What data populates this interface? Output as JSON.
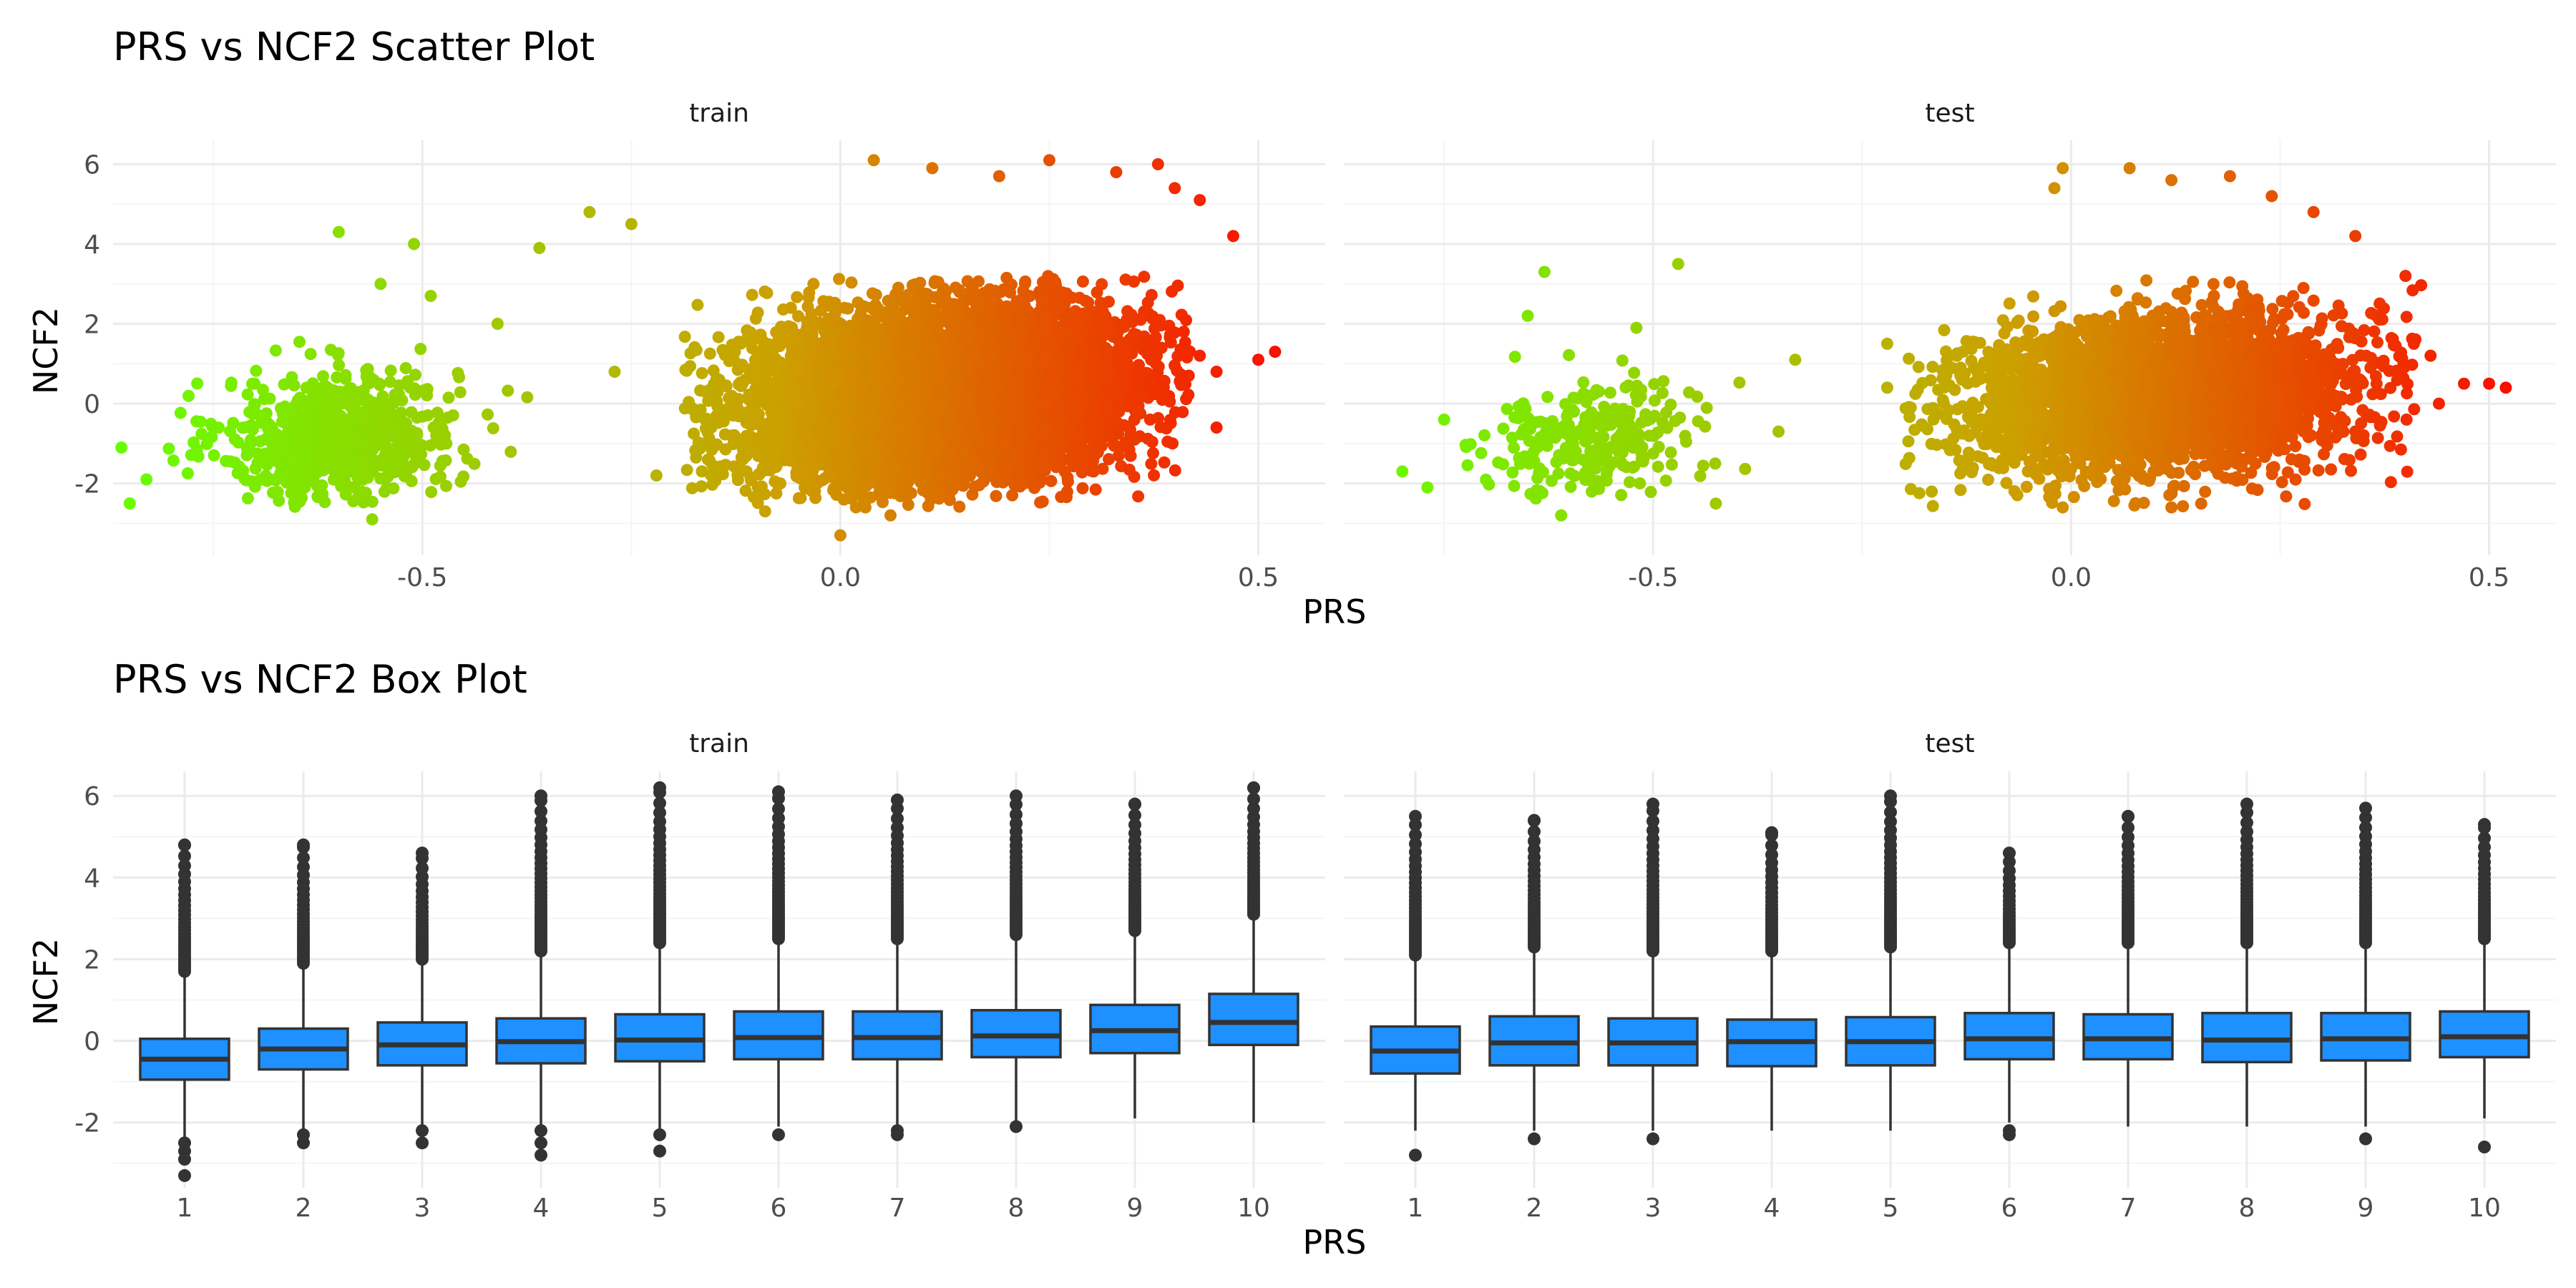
{
  "colors": {
    "background": "#ffffff",
    "grid_major": "#ebebeb",
    "grid_minor": "#f5f5f5",
    "box_fill": "#1e90ff",
    "box_line": "#333333",
    "gradient_low": "#66ff00",
    "gradient_mid": "#cca000",
    "gradient_high": "#ff0000"
  },
  "chart_data": [
    {
      "type": "scatter",
      "title": "PRS vs NCF2 Scatter Plot",
      "xlabel": "PRS",
      "ylabel": "NCF2",
      "facets": [
        "train",
        "test"
      ],
      "xlim": [
        -0.87,
        0.58
      ],
      "ylim": [
        -3.8,
        6.6
      ],
      "xticks": [
        -0.5,
        0.0,
        0.5
      ],
      "xtick_labels": [
        "-0.5",
        "0.0",
        "0.5"
      ],
      "yticks": [
        -2,
        0,
        2,
        4,
        6
      ],
      "ytick_labels": [
        "-2",
        "0",
        "2",
        "4",
        "6"
      ],
      "color_mapping": "PRS (green → orange → red)",
      "grid": true,
      "legend": "none",
      "clusters": {
        "train": [
          {
            "x_mean": -0.6,
            "x_sd": 0.07,
            "y_mean": -0.8,
            "y_sd": 0.8,
            "x_min": -0.82,
            "x_max": -0.3,
            "n": 700
          },
          {
            "x_mean": 0.12,
            "x_sd": 0.12,
            "y_mean": 0.2,
            "y_sd": 1.1,
            "x_min": -0.19,
            "x_max": 0.42,
            "n": 6000
          }
        ],
        "test": [
          {
            "x_mean": -0.58,
            "x_sd": 0.07,
            "y_mean": -0.8,
            "y_sd": 0.7,
            "x_min": -0.8,
            "x_max": -0.32,
            "n": 250
          },
          {
            "x_mean": 0.1,
            "x_sd": 0.12,
            "y_mean": 0.2,
            "y_sd": 1.0,
            "x_min": -0.2,
            "x_max": 0.42,
            "n": 3200
          }
        ]
      },
      "outliers": {
        "train": [
          [
            -0.85,
            -2.5
          ],
          [
            -0.86,
            -1.1
          ],
          [
            -0.83,
            -1.9
          ],
          [
            -0.6,
            4.3
          ],
          [
            -0.51,
            4.0
          ],
          [
            -0.55,
            3.0
          ],
          [
            -0.49,
            2.7
          ],
          [
            -0.3,
            4.8
          ],
          [
            -0.25,
            4.5
          ],
          [
            -0.36,
            3.9
          ],
          [
            -0.41,
            2.0
          ],
          [
            -0.56,
            -2.9
          ],
          [
            -0.27,
            0.8
          ],
          [
            -0.22,
            -1.8
          ],
          [
            0.04,
            6.1
          ],
          [
            0.11,
            5.9
          ],
          [
            0.19,
            5.7
          ],
          [
            0.25,
            6.1
          ],
          [
            0.33,
            5.8
          ],
          [
            0.38,
            6.0
          ],
          [
            0.4,
            5.4
          ],
          [
            0.43,
            5.1
          ],
          [
            0.47,
            4.2
          ],
          [
            0.5,
            1.1
          ],
          [
            0.52,
            1.3
          ],
          [
            0.45,
            -0.6
          ],
          [
            0.45,
            0.8
          ],
          [
            0.43,
            1.2
          ],
          [
            0.0,
            -3.3
          ],
          [
            -0.09,
            -2.7
          ],
          [
            0.03,
            -2.6
          ],
          [
            0.06,
            -2.8
          ]
        ],
        "test": [
          [
            -0.8,
            -1.7
          ],
          [
            -0.77,
            -2.1
          ],
          [
            -0.75,
            -0.4
          ],
          [
            -0.63,
            3.3
          ],
          [
            -0.65,
            2.2
          ],
          [
            -0.47,
            3.5
          ],
          [
            -0.52,
            1.9
          ],
          [
            -0.33,
            1.1
          ],
          [
            -0.61,
            -2.8
          ],
          [
            -0.35,
            -0.7
          ],
          [
            -0.22,
            1.5
          ],
          [
            -0.22,
            0.4
          ],
          [
            -0.01,
            5.9
          ],
          [
            -0.02,
            5.4
          ],
          [
            0.07,
            5.9
          ],
          [
            0.12,
            5.6
          ],
          [
            0.19,
            5.7
          ],
          [
            0.24,
            5.2
          ],
          [
            0.29,
            4.8
          ],
          [
            0.34,
            4.2
          ],
          [
            0.4,
            3.2
          ],
          [
            0.41,
            1.5
          ],
          [
            0.43,
            1.2
          ],
          [
            0.44,
            0.0
          ],
          [
            0.47,
            0.5
          ],
          [
            0.5,
            0.5
          ],
          [
            0.52,
            0.4
          ],
          [
            0.12,
            -2.6
          ],
          [
            -0.01,
            -2.6
          ]
        ]
      }
    },
    {
      "type": "box",
      "title": "PRS vs NCF2 Box Plot",
      "xlabel": "PRS",
      "ylabel": "NCF2",
      "facets": [
        "train",
        "test"
      ],
      "categories": [
        "1",
        "2",
        "3",
        "4",
        "5",
        "6",
        "7",
        "8",
        "9",
        "10"
      ],
      "ylim": [
        -3.6,
        6.6
      ],
      "yticks": [
        -2,
        0,
        2,
        4,
        6
      ],
      "ytick_labels": [
        "-2",
        "0",
        "2",
        "4",
        "6"
      ],
      "grid": true,
      "legend": "none",
      "boxes": {
        "train": [
          {
            "q1": -0.95,
            "median": -0.45,
            "q3": 0.05,
            "whisker_low": -2.4,
            "whisker_high": 1.6,
            "outliers_low": [
              -2.5,
              -2.7,
              -2.9,
              -3.3
            ],
            "outliers_high_range": [
              1.7,
              4.8
            ]
          },
          {
            "q1": -0.7,
            "median": -0.2,
            "q3": 0.3,
            "whisker_low": -2.2,
            "whisker_high": 1.8,
            "outliers_low": [
              -2.3,
              -2.5
            ],
            "outliers_high_range": [
              1.9,
              4.8
            ]
          },
          {
            "q1": -0.6,
            "median": -0.1,
            "q3": 0.45,
            "whisker_low": -2.1,
            "whisker_high": 1.9,
            "outliers_low": [
              -2.2,
              -2.5
            ],
            "outliers_high_range": [
              2.0,
              4.6
            ]
          },
          {
            "q1": -0.55,
            "median": -0.02,
            "q3": 0.55,
            "whisker_low": -2.1,
            "whisker_high": 2.1,
            "outliers_low": [
              -2.2,
              -2.5,
              -2.8
            ],
            "outliers_high_range": [
              2.2,
              6.0
            ]
          },
          {
            "q1": -0.5,
            "median": 0.02,
            "q3": 0.65,
            "whisker_low": -2.2,
            "whisker_high": 2.3,
            "outliers_low": [
              -2.3,
              -2.7
            ],
            "outliers_high_range": [
              2.4,
              6.2
            ]
          },
          {
            "q1": -0.45,
            "median": 0.08,
            "q3": 0.72,
            "whisker_low": -2.1,
            "whisker_high": 2.4,
            "outliers_low": [
              -2.3
            ],
            "outliers_high_range": [
              2.5,
              6.1
            ]
          },
          {
            "q1": -0.45,
            "median": 0.08,
            "q3": 0.72,
            "whisker_low": -2.1,
            "whisker_high": 2.4,
            "outliers_low": [
              -2.2,
              -2.3
            ],
            "outliers_high_range": [
              2.5,
              5.9
            ]
          },
          {
            "q1": -0.4,
            "median": 0.12,
            "q3": 0.75,
            "whisker_low": -2.0,
            "whisker_high": 2.5,
            "outliers_low": [
              -2.1
            ],
            "outliers_high_range": [
              2.6,
              6.0
            ]
          },
          {
            "q1": -0.3,
            "median": 0.25,
            "q3": 0.88,
            "whisker_low": -1.9,
            "whisker_high": 2.6,
            "outliers_low": [],
            "outliers_high_range": [
              2.7,
              5.8
            ]
          },
          {
            "q1": -0.1,
            "median": 0.45,
            "q3": 1.15,
            "whisker_low": -2.0,
            "whisker_high": 3.0,
            "outliers_low": [],
            "outliers_high_range": [
              3.1,
              6.2
            ]
          }
        ],
        "test": [
          {
            "q1": -0.8,
            "median": -0.25,
            "q3": 0.35,
            "whisker_low": -2.2,
            "whisker_high": 2.0,
            "outliers_low": [
              -2.8
            ],
            "outliers_high_range": [
              2.1,
              5.5
            ]
          },
          {
            "q1": -0.6,
            "median": -0.05,
            "q3": 0.6,
            "whisker_low": -2.2,
            "whisker_high": 2.2,
            "outliers_low": [
              -2.4
            ],
            "outliers_high_range": [
              2.3,
              5.4
            ]
          },
          {
            "q1": -0.6,
            "median": -0.05,
            "q3": 0.55,
            "whisker_low": -2.2,
            "whisker_high": 2.1,
            "outliers_low": [
              -2.4
            ],
            "outliers_high_range": [
              2.2,
              5.8
            ]
          },
          {
            "q1": -0.62,
            "median": -0.02,
            "q3": 0.52,
            "whisker_low": -2.2,
            "whisker_high": 2.1,
            "outliers_low": [],
            "outliers_high_range": [
              2.2,
              5.1
            ]
          },
          {
            "q1": -0.6,
            "median": -0.02,
            "q3": 0.58,
            "whisker_low": -2.2,
            "whisker_high": 2.2,
            "outliers_low": [],
            "outliers_high_range": [
              2.3,
              6.0
            ]
          },
          {
            "q1": -0.45,
            "median": 0.05,
            "q3": 0.68,
            "whisker_low": -2.0,
            "whisker_high": 2.3,
            "outliers_low": [
              -2.2,
              -2.3
            ],
            "outliers_high_range": [
              2.4,
              4.6
            ]
          },
          {
            "q1": -0.45,
            "median": 0.05,
            "q3": 0.65,
            "whisker_low": -2.1,
            "whisker_high": 2.3,
            "outliers_low": [],
            "outliers_high_range": [
              2.4,
              5.5
            ]
          },
          {
            "q1": -0.52,
            "median": 0.02,
            "q3": 0.68,
            "whisker_low": -2.1,
            "whisker_high": 2.3,
            "outliers_low": [],
            "outliers_high_range": [
              2.4,
              5.8
            ]
          },
          {
            "q1": -0.48,
            "median": 0.05,
            "q3": 0.68,
            "whisker_low": -2.1,
            "whisker_high": 2.3,
            "outliers_low": [
              -2.4
            ],
            "outliers_high_range": [
              2.4,
              5.7
            ]
          },
          {
            "q1": -0.4,
            "median": 0.1,
            "q3": 0.72,
            "whisker_low": -1.9,
            "whisker_high": 2.4,
            "outliers_low": [
              -2.6
            ],
            "outliers_high_range": [
              2.5,
              5.3
            ]
          }
        ]
      }
    }
  ]
}
